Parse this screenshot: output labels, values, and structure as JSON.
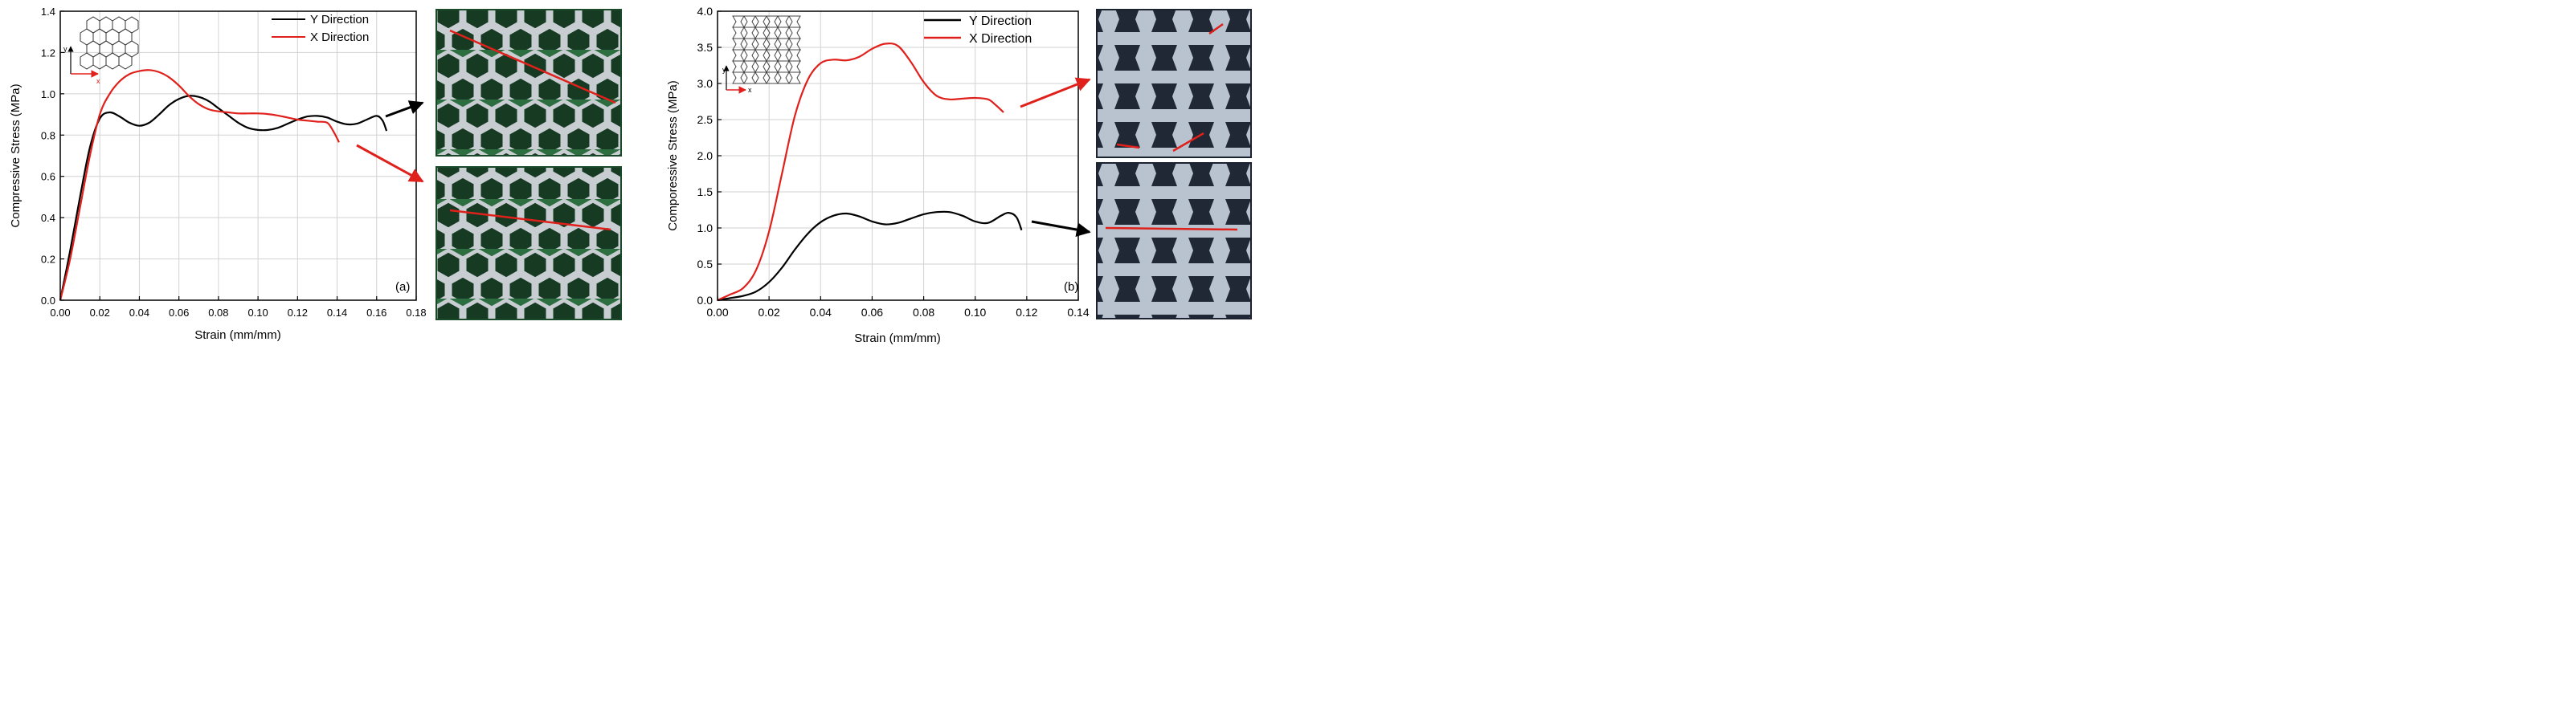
{
  "colors": {
    "y_series": "#000000",
    "x_series": "#e0201b",
    "grid": "#d2d2d2",
    "hex_bg": "#2c6e3f",
    "bow_bg": "#2a3340"
  },
  "panels": [
    {
      "id": "a",
      "label": "(a)",
      "xlabel": "Strain (mm/mm)",
      "ylabel": "Compressive Stress (MPa)",
      "inset_axis": {
        "x": "x",
        "y": "y"
      }
    },
    {
      "id": "b",
      "label": "(b)",
      "xlabel": "Strain (mm/mm)",
      "ylabel": "Comporessive Stress (MPa)",
      "inset_axis": {
        "x": "x",
        "y": "y"
      }
    }
  ],
  "chart_data": [
    {
      "type": "line",
      "panel": "a",
      "xlabel": "Strain (mm/mm)",
      "ylabel": "Compressive Stress (MPa)",
      "xlim": [
        0,
        0.18
      ],
      "ylim": [
        0,
        1.4
      ],
      "xticks": [
        "0.00",
        "0.02",
        "0.04",
        "0.06",
        "0.08",
        "0.10",
        "0.12",
        "0.14",
        "0.16",
        "0.18"
      ],
      "yticks": [
        "0.0",
        "0.2",
        "0.4",
        "0.6",
        "0.8",
        "1.0",
        "1.2",
        "1.4"
      ],
      "grid": true,
      "legend_position": "top-right",
      "series": [
        {
          "name": "Y Direction",
          "color": "#000000",
          "x": [
            0,
            0.005,
            0.01,
            0.015,
            0.02,
            0.025,
            0.03,
            0.035,
            0.04,
            0.045,
            0.05,
            0.055,
            0.06,
            0.065,
            0.07,
            0.075,
            0.08,
            0.085,
            0.09,
            0.095,
            0.1,
            0.105,
            0.11,
            0.115,
            0.12,
            0.125,
            0.13,
            0.135,
            0.14,
            0.145,
            0.15,
            0.155,
            0.16,
            0.163,
            0.165
          ],
          "y": [
            0,
            0.24,
            0.5,
            0.74,
            0.88,
            0.91,
            0.89,
            0.86,
            0.845,
            0.86,
            0.9,
            0.945,
            0.975,
            0.99,
            0.985,
            0.965,
            0.93,
            0.895,
            0.86,
            0.835,
            0.825,
            0.825,
            0.835,
            0.855,
            0.875,
            0.89,
            0.893,
            0.885,
            0.865,
            0.852,
            0.855,
            0.875,
            0.893,
            0.87,
            0.82
          ]
        },
        {
          "name": "X Direction",
          "color": "#e0201b",
          "x": [
            0,
            0.005,
            0.01,
            0.015,
            0.02,
            0.025,
            0.03,
            0.035,
            0.04,
            0.045,
            0.05,
            0.055,
            0.06,
            0.065,
            0.07,
            0.075,
            0.08,
            0.085,
            0.09,
            0.095,
            0.1,
            0.105,
            0.11,
            0.115,
            0.12,
            0.125,
            0.13,
            0.135,
            0.138,
            0.141
          ],
          "y": [
            0,
            0.2,
            0.45,
            0.7,
            0.9,
            1.0,
            1.06,
            1.095,
            1.11,
            1.115,
            1.105,
            1.08,
            1.04,
            0.99,
            0.95,
            0.925,
            0.915,
            0.91,
            0.905,
            0.905,
            0.905,
            0.902,
            0.895,
            0.885,
            0.875,
            0.87,
            0.865,
            0.86,
            0.82,
            0.765
          ]
        }
      ]
    },
    {
      "type": "line",
      "panel": "b",
      "xlabel": "Strain (mm/mm)",
      "ylabel": "Comporessive Stress (MPa)",
      "xlim": [
        0,
        0.14
      ],
      "ylim": [
        0,
        4.0
      ],
      "xticks": [
        "0.00",
        "0.02",
        "0.04",
        "0.06",
        "0.08",
        "0.10",
        "0.12",
        "0.14"
      ],
      "yticks": [
        "0.0",
        "0.5",
        "1.0",
        "1.5",
        "2.0",
        "2.5",
        "3.0",
        "3.5",
        "4.0"
      ],
      "grid": true,
      "legend_position": "top-right",
      "series": [
        {
          "name": "Y Direction",
          "color": "#000000",
          "x": [
            0,
            0.005,
            0.01,
            0.015,
            0.02,
            0.025,
            0.03,
            0.035,
            0.04,
            0.045,
            0.05,
            0.055,
            0.06,
            0.065,
            0.07,
            0.075,
            0.08,
            0.085,
            0.09,
            0.095,
            0.1,
            0.105,
            0.11,
            0.113,
            0.116,
            0.118
          ],
          "y": [
            0,
            0.03,
            0.06,
            0.12,
            0.25,
            0.45,
            0.7,
            0.92,
            1.08,
            1.17,
            1.2,
            1.16,
            1.09,
            1.05,
            1.07,
            1.13,
            1.19,
            1.22,
            1.22,
            1.17,
            1.09,
            1.07,
            1.17,
            1.21,
            1.15,
            0.97
          ]
        },
        {
          "name": "X Direction",
          "color": "#e0201b",
          "x": [
            0,
            0.005,
            0.01,
            0.015,
            0.02,
            0.025,
            0.03,
            0.035,
            0.04,
            0.045,
            0.05,
            0.055,
            0.06,
            0.065,
            0.07,
            0.075,
            0.08,
            0.085,
            0.09,
            0.095,
            0.1,
            0.105,
            0.108,
            0.111
          ],
          "y": [
            0,
            0.08,
            0.17,
            0.42,
            0.95,
            1.75,
            2.55,
            3.05,
            3.28,
            3.33,
            3.32,
            3.37,
            3.48,
            3.55,
            3.52,
            3.3,
            3.02,
            2.83,
            2.78,
            2.79,
            2.8,
            2.78,
            2.7,
            2.6
          ]
        }
      ]
    }
  ]
}
